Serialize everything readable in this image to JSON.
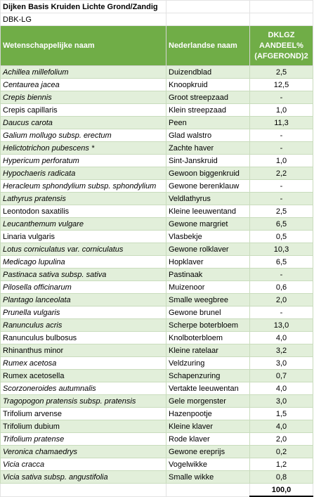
{
  "sheet": {
    "title": "Dijken Basis Kruiden Lichte Grond/Zandig",
    "code": "DBK-LG",
    "headers": {
      "scientific": "Wetenschappelijke naam",
      "dutch": "Nederlandse naam",
      "share": "DKLGZ AANDEEL% (AFGEROND)2"
    },
    "rows": [
      {
        "sci": "Achillea millefolium",
        "nl": "Duizendblad",
        "val": "2,5",
        "italic": true
      },
      {
        "sci": "Centaurea jacea",
        "nl": "Knoopkruid",
        "val": "12,5",
        "italic": true
      },
      {
        "sci": "Crepis biennis",
        "nl": "Groot streepzaad",
        "val": "-",
        "italic": true
      },
      {
        "sci": "Crepis capillaris",
        "nl": "Klein streepzaad",
        "val": "1,0",
        "italic": false
      },
      {
        "sci": "Daucus carota",
        "nl": "Peen",
        "val": "11,3",
        "italic": true
      },
      {
        "sci": "Galium mollugo subsp. erectum",
        "nl": "Glad walstro",
        "val": "-",
        "italic": true
      },
      {
        "sci": "Helictotrichon pubescens *",
        "nl": "Zachte haver",
        "val": "-",
        "italic": true
      },
      {
        "sci": "Hypericum perforatum",
        "nl": "Sint-Janskruid",
        "val": "1,0",
        "italic": true
      },
      {
        "sci": "Hypochaeris radicata",
        "nl": "Gewoon biggenkruid",
        "val": "2,2",
        "italic": true
      },
      {
        "sci": "Heracleum sphondylium subsp. sphondylium",
        "nl": "Gewone berenklauw",
        "val": "-",
        "italic": true
      },
      {
        "sci": "Lathyrus pratensis",
        "nl": "Veldlathyrus",
        "val": "-",
        "italic": true
      },
      {
        "sci": "Leontodon saxatilis",
        "nl": "Kleine leeuwentand",
        "val": "2,5",
        "italic": false
      },
      {
        "sci": "Leucanthemum vulgare",
        "nl": "Gewone margriet",
        "val": "6,5",
        "italic": true
      },
      {
        "sci": "Linaria vulgaris",
        "nl": "Vlasbekje",
        "val": "0,5",
        "italic": false
      },
      {
        "sci": "Lotus corniculatus var. corniculatus",
        "nl": "Gewone rolklaver",
        "val": "10,3",
        "italic": true
      },
      {
        "sci": "Medicago lupulina",
        "nl": "Hopklaver",
        "val": "6,5",
        "italic": true
      },
      {
        "sci": "Pastinaca sativa subsp. sativa",
        "nl": "Pastinaak",
        "val": "-",
        "italic": true
      },
      {
        "sci": "Pilosella officinarum",
        "nl": "Muizenoor",
        "val": "0,6",
        "italic": true
      },
      {
        "sci": "Plantago lanceolata",
        "nl": "Smalle weegbree",
        "val": "2,0",
        "italic": true
      },
      {
        "sci": "Prunella vulgaris",
        "nl": "Gewone brunel",
        "val": "-",
        "italic": true
      },
      {
        "sci": "Ranunculus acris",
        "nl": "Scherpe boterbloem",
        "val": "13,0",
        "italic": true
      },
      {
        "sci": "Ranunculus bulbosus",
        "nl": "Knolboterbloem",
        "val": "4,0",
        "italic": false
      },
      {
        "sci": "Rhinanthus minor",
        "nl": "Kleine ratelaar",
        "val": "3,2",
        "italic": false
      },
      {
        "sci": "Rumex acetosa",
        "nl": "Veldzuring",
        "val": "3,0",
        "italic": true
      },
      {
        "sci": "Rumex acetosella",
        "nl": "Schapenzuring",
        "val": "0,7",
        "italic": false
      },
      {
        "sci": "Scorzoneroides autumnalis",
        "nl": "Vertakte leeuwentan",
        "val": "4,0",
        "italic": true
      },
      {
        "sci": "Tragopogon pratensis subsp. pratensis",
        "nl": "Gele morgenster",
        "val": "3,0",
        "italic": true
      },
      {
        "sci": "Trifolium arvense",
        "nl": "Hazenpootje",
        "val": "1,5",
        "italic": false
      },
      {
        "sci": "Trifolium dubium",
        "nl": "Kleine klaver",
        "val": "4,0",
        "italic": false
      },
      {
        "sci": "Trifolium pratense",
        "nl": "Rode klaver",
        "val": "2,0",
        "italic": true
      },
      {
        "sci": "Veronica chamaedrys",
        "nl": "Gewone ereprijs",
        "val": "0,2",
        "italic": true
      },
      {
        "sci": "Vicia cracca",
        "nl": "Vogelwikke",
        "val": "1,2",
        "italic": true
      },
      {
        "sci": "Vicia sativa subsp. angustifolia",
        "nl": "Smalle wikke",
        "val": "0,8",
        "italic": true
      }
    ],
    "total": "100,0",
    "colors": {
      "header_bg": "#70ad47",
      "band_bg": "#e2efda"
    }
  }
}
